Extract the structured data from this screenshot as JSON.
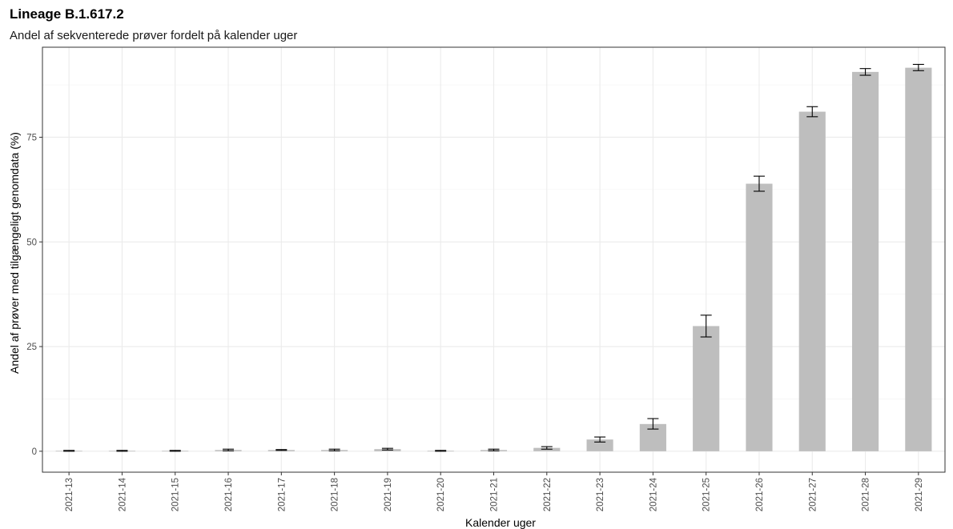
{
  "chart_data": {
    "type": "bar",
    "title": "Lineage B.1.617.2",
    "subtitle": "Andel af sekventerede prøver fordelt på kalender uger",
    "xlabel": "Kalender uger",
    "ylabel": "Andel af prøver med tilgængeligt genomdata (%)",
    "categories": [
      "2021-13",
      "2021-14",
      "2021-15",
      "2021-16",
      "2021-17",
      "2021-18",
      "2021-19",
      "2021-20",
      "2021-21",
      "2021-22",
      "2021-23",
      "2021-24",
      "2021-25",
      "2021-26",
      "2021-27",
      "2021-28",
      "2021-29"
    ],
    "values": [
      0.1,
      0.1,
      0.1,
      0.3,
      0.3,
      0.3,
      0.5,
      0.1,
      0.3,
      0.8,
      2.8,
      6.5,
      29.9,
      63.9,
      81.1,
      90.6,
      91.6
    ],
    "error_low": [
      0.0,
      0.0,
      0.0,
      0.1,
      0.2,
      0.1,
      0.3,
      0.0,
      0.1,
      0.5,
      2.2,
      5.3,
      27.3,
      62.1,
      79.9,
      89.8,
      90.9
    ],
    "error_high": [
      0.2,
      0.2,
      0.2,
      0.5,
      0.4,
      0.5,
      0.7,
      0.2,
      0.5,
      1.1,
      3.4,
      7.8,
      32.5,
      65.7,
      82.3,
      91.4,
      92.4
    ],
    "yticks": [
      0,
      25,
      50,
      75
    ],
    "ylim": [
      -5,
      96.5
    ],
    "grid": true,
    "bar_color": "#bebebe",
    "errorbar_color": "#000000"
  }
}
